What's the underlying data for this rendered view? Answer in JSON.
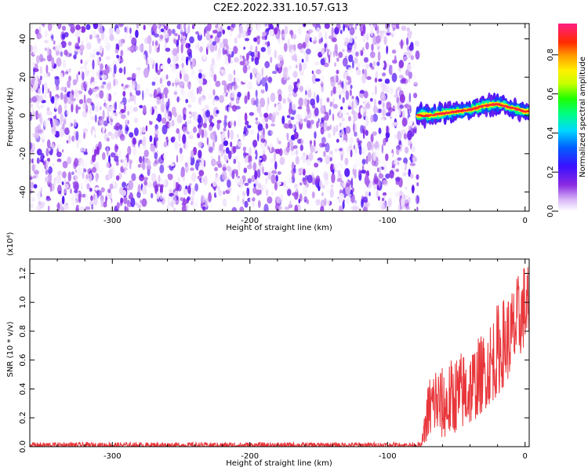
{
  "title": "C2E2.2022.331.10.57.G13",
  "chart_data": [
    {
      "type": "heatmap",
      "xlabel": "Height of straight line (km)",
      "ylabel": "Frequency (Hz)",
      "xlim": [
        -360,
        3
      ],
      "ylim": [
        -50,
        48
      ],
      "xticks": [
        -300,
        -200,
        -100,
        0
      ],
      "yticks": [
        -40,
        -20,
        0,
        20,
        40
      ],
      "colorbar": {
        "label": "Normalized spectral amplitude",
        "range": [
          0.0,
          0.96
        ],
        "ticks": [
          "0.0",
          "0.2",
          "0.4",
          "0.6",
          "0.8"
        ],
        "tick_values": [
          0.0,
          0.2,
          0.4,
          0.6,
          0.8
        ],
        "colormap": "rainbow (white-purple-blue-cyan-green-yellow-orange-red-magenta)"
      },
      "noise_region": {
        "x_range": [
          -360,
          -78
        ],
        "y_range": [
          -50,
          48
        ],
        "amplitude_range": [
          0.0,
          0.25
        ]
      },
      "signal_ridge": {
        "x": [
          -78,
          -70,
          -60,
          -50,
          -40,
          -30,
          -20,
          -10,
          0
        ],
        "frequency": [
          0,
          0,
          1,
          2,
          3,
          5,
          6,
          4,
          2
        ],
        "peak_amplitude": 0.95
      },
      "grid": false
    },
    {
      "type": "line",
      "xlabel": "Height of straight line (km)",
      "ylabel": "SNR (10 * v/v)",
      "y_multiplier": "(x10⁴)",
      "xlim": [
        -360,
        3
      ],
      "ylim": [
        0.0,
        1.3
      ],
      "xticks": [
        -300,
        -200,
        -100,
        0
      ],
      "yticks": [
        "0.0",
        "0.2",
        "0.4",
        "0.6",
        "0.8",
        "1.0",
        "1.2"
      ],
      "ytick_values": [
        0.0,
        0.2,
        0.4,
        0.6,
        0.8,
        1.0,
        1.2
      ],
      "series_color": "#e8363a",
      "noise_floor": {
        "x_range": [
          -360,
          -75
        ],
        "mean": 0.01,
        "max": 0.03
      },
      "envelope": {
        "x": [
          -75,
          -70,
          -65,
          -60,
          -50,
          -40,
          -30,
          -20,
          -10,
          0
        ],
        "low": [
          0.01,
          0.05,
          0.1,
          0.05,
          0.1,
          0.15,
          0.25,
          0.35,
          0.5,
          0.7
        ],
        "high": [
          0.05,
          0.5,
          0.6,
          0.55,
          0.65,
          0.7,
          0.8,
          1.0,
          1.1,
          1.3
        ]
      },
      "grid": false
    }
  ]
}
